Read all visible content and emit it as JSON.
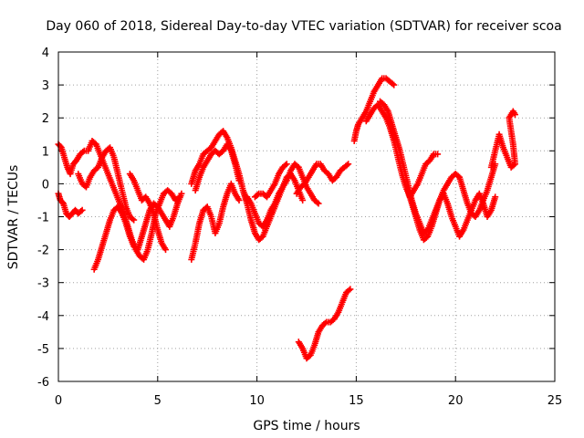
{
  "chart_data": {
    "type": "scatter",
    "title": "Day 060 of 2018, Sidereal Day-to-day VTEC variation (SDTVAR) for receiver scoa",
    "xlabel": "GPS time / hours",
    "ylabel": "SDTVAR / TECUs",
    "xlim": [
      0,
      25
    ],
    "ylim": [
      -6,
      4
    ],
    "xticks": [
      "0",
      "5",
      "10",
      "15",
      "20",
      "25"
    ],
    "yticks": [
      "4",
      "3",
      "2",
      "1",
      "0",
      "-1",
      "-2",
      "-3",
      "-4",
      "-5",
      "-6"
    ],
    "grid": true,
    "marker": "+",
    "color": "#ff0000",
    "series": [
      {
        "name": "s1",
        "points": [
          [
            0.0,
            1.2
          ],
          [
            0.15,
            1.1
          ],
          [
            0.3,
            0.8
          ],
          [
            0.45,
            0.5
          ],
          [
            0.6,
            0.3
          ],
          [
            0.75,
            0.6
          ],
          [
            0.9,
            0.7
          ],
          [
            1.1,
            0.9
          ],
          [
            1.3,
            1.0
          ],
          [
            1.5,
            1.0
          ],
          [
            1.7,
            1.3
          ],
          [
            1.9,
            1.2
          ],
          [
            2.1,
            0.9
          ],
          [
            2.3,
            0.6
          ],
          [
            2.5,
            0.3
          ],
          [
            2.7,
            0.0
          ],
          [
            2.9,
            -0.3
          ],
          [
            3.1,
            -0.6
          ],
          [
            3.3,
            -0.9
          ],
          [
            3.5,
            -1.3
          ],
          [
            3.7,
            -1.7
          ],
          [
            3.9,
            -2.0
          ],
          [
            4.1,
            -2.2
          ],
          [
            4.3,
            -2.3
          ],
          [
            4.5,
            -2.0
          ],
          [
            4.7,
            -1.5
          ],
          [
            4.9,
            -0.9
          ],
          [
            5.1,
            -0.6
          ],
          [
            5.3,
            -0.3
          ],
          [
            5.5,
            -0.2
          ],
          [
            5.7,
            -0.3
          ],
          [
            5.9,
            -0.5
          ],
          [
            6.1,
            -0.4
          ]
        ]
      },
      {
        "name": "s2",
        "points": [
          [
            0.0,
            -0.3
          ],
          [
            0.1,
            -0.5
          ],
          [
            0.25,
            -0.6
          ],
          [
            0.4,
            -0.9
          ],
          [
            0.55,
            -1.0
          ],
          [
            0.7,
            -0.9
          ],
          [
            0.85,
            -0.8
          ],
          [
            1.0,
            -0.9
          ],
          [
            1.2,
            -0.8
          ]
        ]
      },
      {
        "name": "s3",
        "points": [
          [
            1.0,
            0.3
          ],
          [
            1.2,
            0.0
          ],
          [
            1.4,
            -0.1
          ],
          [
            1.6,
            0.2
          ],
          [
            1.8,
            0.4
          ],
          [
            2.0,
            0.5
          ],
          [
            2.2,
            0.8
          ],
          [
            2.4,
            1.0
          ],
          [
            2.6,
            1.1
          ],
          [
            2.8,
            0.8
          ],
          [
            3.0,
            0.3
          ],
          [
            3.2,
            -0.2
          ],
          [
            3.4,
            -0.7
          ],
          [
            3.6,
            -1.0
          ],
          [
            3.8,
            -1.1
          ]
        ]
      },
      {
        "name": "s4",
        "points": [
          [
            1.8,
            -2.6
          ],
          [
            2.0,
            -2.3
          ],
          [
            2.2,
            -1.9
          ],
          [
            2.4,
            -1.5
          ],
          [
            2.6,
            -1.1
          ],
          [
            2.8,
            -0.8
          ],
          [
            3.0,
            -0.7
          ],
          [
            3.2,
            -0.9
          ],
          [
            3.4,
            -1.2
          ],
          [
            3.6,
            -1.6
          ],
          [
            3.8,
            -1.9
          ],
          [
            4.0,
            -2.0
          ],
          [
            4.2,
            -1.6
          ],
          [
            4.4,
            -1.2
          ],
          [
            4.6,
            -0.8
          ],
          [
            4.8,
            -0.6
          ],
          [
            5.0,
            -0.7
          ],
          [
            5.2,
            -0.9
          ],
          [
            5.4,
            -1.1
          ],
          [
            5.6,
            -1.3
          ],
          [
            5.8,
            -1.0
          ],
          [
            6.0,
            -0.6
          ],
          [
            6.2,
            -0.3
          ]
        ]
      },
      {
        "name": "s5",
        "points": [
          [
            3.6,
            0.3
          ],
          [
            3.8,
            0.1
          ],
          [
            4.0,
            -0.2
          ],
          [
            4.2,
            -0.5
          ],
          [
            4.4,
            -0.4
          ],
          [
            4.6,
            -0.6
          ],
          [
            4.8,
            -0.9
          ],
          [
            5.0,
            -1.4
          ],
          [
            5.2,
            -1.8
          ],
          [
            5.4,
            -2.0
          ]
        ]
      },
      {
        "name": "s6",
        "points": [
          [
            6.7,
            -2.3
          ],
          [
            6.9,
            -1.8
          ],
          [
            7.1,
            -1.2
          ],
          [
            7.3,
            -0.8
          ],
          [
            7.5,
            -0.7
          ],
          [
            7.7,
            -1.0
          ],
          [
            7.9,
            -1.5
          ],
          [
            8.1,
            -1.2
          ],
          [
            8.3,
            -0.7
          ],
          [
            8.5,
            -0.3
          ],
          [
            8.7,
            0.0
          ],
          [
            8.9,
            -0.3
          ],
          [
            9.1,
            -0.5
          ]
        ]
      },
      {
        "name": "s7",
        "points": [
          [
            6.7,
            0.0
          ],
          [
            6.9,
            0.4
          ],
          [
            7.1,
            0.6
          ],
          [
            7.3,
            0.9
          ],
          [
            7.5,
            1.0
          ],
          [
            7.7,
            1.1
          ],
          [
            7.9,
            1.3
          ],
          [
            8.1,
            1.5
          ],
          [
            8.3,
            1.6
          ],
          [
            8.5,
            1.4
          ],
          [
            8.7,
            1.1
          ],
          [
            8.9,
            0.7
          ],
          [
            9.1,
            0.3
          ],
          [
            9.3,
            -0.2
          ],
          [
            9.5,
            -0.5
          ]
        ]
      },
      {
        "name": "s8",
        "points": [
          [
            6.9,
            -0.2
          ],
          [
            7.1,
            0.2
          ],
          [
            7.3,
            0.5
          ],
          [
            7.5,
            0.7
          ],
          [
            7.7,
            0.9
          ],
          [
            7.9,
            1.0
          ],
          [
            8.1,
            0.9
          ],
          [
            8.3,
            1.0
          ],
          [
            8.5,
            1.2
          ],
          [
            8.7,
            1.0
          ],
          [
            8.9,
            0.6
          ],
          [
            9.1,
            0.1
          ]
        ]
      },
      {
        "name": "s9",
        "points": [
          [
            9.3,
            -0.2
          ],
          [
            9.5,
            -0.6
          ],
          [
            9.7,
            -1.1
          ],
          [
            9.9,
            -1.5
          ],
          [
            10.1,
            -1.7
          ],
          [
            10.3,
            -1.6
          ],
          [
            10.5,
            -1.3
          ],
          [
            10.7,
            -1.0
          ],
          [
            10.9,
            -0.7
          ],
          [
            11.1,
            -0.4
          ],
          [
            11.3,
            -0.1
          ],
          [
            11.5,
            0.1
          ],
          [
            11.7,
            0.4
          ],
          [
            11.9,
            0.6
          ],
          [
            12.1,
            0.5
          ],
          [
            12.3,
            0.2
          ],
          [
            12.5,
            -0.1
          ],
          [
            12.7,
            -0.3
          ],
          [
            12.9,
            -0.5
          ],
          [
            13.1,
            -0.6
          ]
        ]
      },
      {
        "name": "s10",
        "points": [
          [
            9.5,
            -0.4
          ],
          [
            9.7,
            -0.6
          ],
          [
            9.9,
            -0.9
          ],
          [
            10.1,
            -1.2
          ],
          [
            10.3,
            -1.3
          ],
          [
            10.5,
            -1.1
          ],
          [
            10.7,
            -0.8
          ],
          [
            10.9,
            -0.6
          ],
          [
            11.1,
            -0.3
          ],
          [
            11.3,
            -0.1
          ],
          [
            11.5,
            0.2
          ],
          [
            11.7,
            0.3
          ],
          [
            11.9,
            0.1
          ],
          [
            12.1,
            -0.2
          ],
          [
            12.3,
            -0.5
          ]
        ]
      },
      {
        "name": "s11",
        "points": [
          [
            9.9,
            -0.4
          ],
          [
            10.1,
            -0.3
          ],
          [
            10.3,
            -0.3
          ],
          [
            10.5,
            -0.4
          ],
          [
            10.7,
            -0.2
          ],
          [
            10.9,
            0.0
          ],
          [
            11.1,
            0.3
          ],
          [
            11.3,
            0.5
          ],
          [
            11.5,
            0.6
          ]
        ]
      },
      {
        "name": "s12",
        "points": [
          [
            12.0,
            -0.3
          ],
          [
            12.2,
            -0.1
          ],
          [
            12.4,
            0.0
          ],
          [
            12.6,
            0.2
          ],
          [
            12.8,
            0.4
          ],
          [
            13.0,
            0.6
          ],
          [
            13.2,
            0.6
          ],
          [
            13.4,
            0.4
          ],
          [
            13.6,
            0.3
          ],
          [
            13.8,
            0.1
          ],
          [
            14.0,
            0.2
          ],
          [
            14.2,
            0.4
          ],
          [
            14.4,
            0.5
          ],
          [
            14.6,
            0.6
          ]
        ]
      },
      {
        "name": "s13",
        "points": [
          [
            12.1,
            -4.8
          ],
          [
            12.3,
            -5.0
          ],
          [
            12.5,
            -5.3
          ],
          [
            12.7,
            -5.2
          ],
          [
            12.9,
            -4.9
          ],
          [
            13.1,
            -4.5
          ],
          [
            13.3,
            -4.3
          ],
          [
            13.5,
            -4.2
          ],
          [
            13.7,
            -4.2
          ],
          [
            13.9,
            -4.1
          ],
          [
            14.1,
            -3.9
          ],
          [
            14.3,
            -3.6
          ],
          [
            14.5,
            -3.3
          ],
          [
            14.7,
            -3.2
          ]
        ]
      },
      {
        "name": "s14",
        "points": [
          [
            14.9,
            1.3
          ],
          [
            15.0,
            1.6
          ],
          [
            15.1,
            1.8
          ],
          [
            15.3,
            2.0
          ],
          [
            15.5,
            2.2
          ],
          [
            15.7,
            2.5
          ],
          [
            15.9,
            2.8
          ],
          [
            16.1,
            3.0
          ],
          [
            16.3,
            3.2
          ],
          [
            16.5,
            3.2
          ],
          [
            16.7,
            3.1
          ],
          [
            16.9,
            3.0
          ]
        ]
      },
      {
        "name": "s15",
        "points": [
          [
            15.5,
            1.9
          ],
          [
            15.7,
            2.1
          ],
          [
            15.9,
            2.3
          ],
          [
            16.1,
            2.4
          ],
          [
            16.3,
            2.2
          ],
          [
            16.5,
            2.0
          ],
          [
            16.7,
            1.7
          ],
          [
            16.9,
            1.3
          ],
          [
            17.1,
            0.8
          ],
          [
            17.3,
            0.3
          ],
          [
            17.5,
            -0.1
          ],
          [
            17.7,
            -0.4
          ],
          [
            17.9,
            -0.2
          ],
          [
            18.1,
            0.0
          ],
          [
            18.3,
            0.3
          ],
          [
            18.5,
            0.6
          ],
          [
            18.7,
            0.7
          ],
          [
            18.9,
            0.9
          ],
          [
            19.1,
            0.9
          ]
        ]
      },
      {
        "name": "s16",
        "points": [
          [
            16.2,
            2.5
          ],
          [
            16.4,
            2.4
          ],
          [
            16.6,
            2.2
          ],
          [
            16.8,
            1.8
          ],
          [
            17.0,
            1.4
          ],
          [
            17.2,
            1.0
          ],
          [
            17.4,
            0.5
          ],
          [
            17.6,
            0.0
          ],
          [
            17.8,
            -0.5
          ],
          [
            18.0,
            -0.9
          ],
          [
            18.2,
            -1.2
          ],
          [
            18.4,
            -1.5
          ],
          [
            18.6,
            -1.4
          ],
          [
            18.8,
            -1.1
          ],
          [
            19.0,
            -0.8
          ],
          [
            19.2,
            -0.5
          ],
          [
            19.4,
            -0.2
          ],
          [
            19.6,
            0.0
          ],
          [
            19.8,
            0.2
          ],
          [
            20.0,
            0.3
          ],
          [
            20.2,
            0.2
          ],
          [
            20.4,
            -0.2
          ],
          [
            20.6,
            -0.6
          ],
          [
            20.8,
            -0.9
          ],
          [
            21.0,
            -1.0
          ],
          [
            21.2,
            -0.8
          ],
          [
            21.4,
            -0.5
          ],
          [
            21.6,
            -0.2
          ],
          [
            21.8,
            0.2
          ],
          [
            22.0,
            0.6
          ]
        ]
      },
      {
        "name": "s17",
        "points": [
          [
            17.6,
            -0.2
          ],
          [
            17.8,
            -0.6
          ],
          [
            18.0,
            -1.0
          ],
          [
            18.2,
            -1.4
          ],
          [
            18.4,
            -1.7
          ],
          [
            18.6,
            -1.6
          ],
          [
            18.8,
            -1.3
          ],
          [
            19.0,
            -0.9
          ],
          [
            19.2,
            -0.5
          ],
          [
            19.4,
            -0.3
          ],
          [
            19.6,
            -0.6
          ],
          [
            19.8,
            -1.0
          ],
          [
            20.0,
            -1.3
          ],
          [
            20.2,
            -1.6
          ],
          [
            20.4,
            -1.4
          ],
          [
            20.6,
            -1.1
          ],
          [
            20.8,
            -0.8
          ],
          [
            21.0,
            -0.5
          ],
          [
            21.2,
            -0.3
          ],
          [
            21.4,
            -0.6
          ],
          [
            21.6,
            -1.0
          ],
          [
            21.8,
            -0.8
          ],
          [
            22.0,
            -0.4
          ]
        ]
      },
      {
        "name": "s18",
        "points": [
          [
            21.8,
            0.5
          ],
          [
            22.0,
            1.0
          ],
          [
            22.2,
            1.5
          ],
          [
            22.4,
            1.1
          ],
          [
            22.6,
            0.8
          ],
          [
            22.8,
            0.5
          ],
          [
            23.0,
            0.6
          ],
          [
            22.9,
            1.2
          ],
          [
            22.7,
            2.0
          ],
          [
            22.9,
            2.2
          ],
          [
            23.0,
            2.1
          ]
        ]
      }
    ]
  }
}
